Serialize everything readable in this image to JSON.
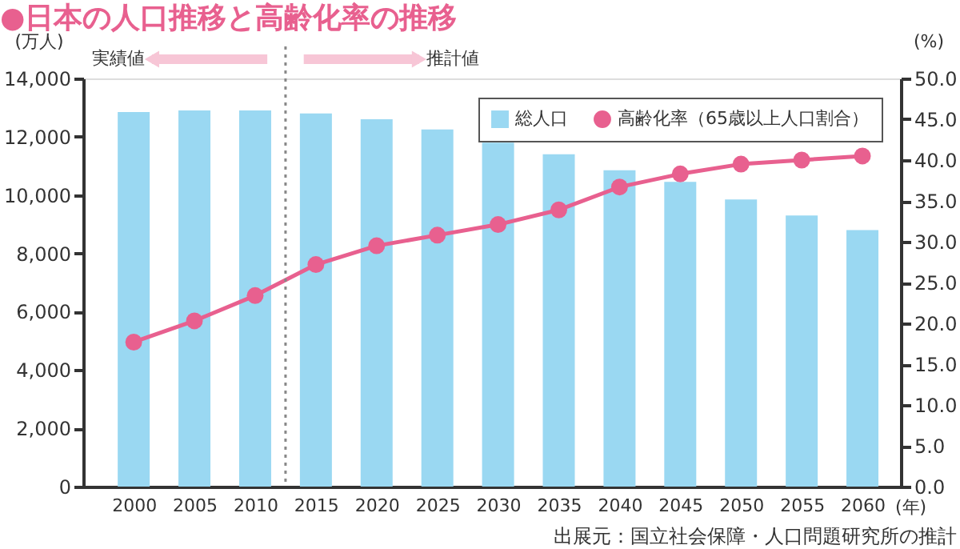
{
  "chart_data": {
    "type": "bar",
    "title": "●日本の人口推移と高齢化率の推移",
    "x": [
      2000,
      2005,
      2010,
      2015,
      2020,
      2025,
      2030,
      2035,
      2040,
      2045,
      2050,
      2055,
      2060
    ],
    "xlim": [
      1996.5,
      2062.5
    ],
    "xticks": [
      2000,
      2005,
      2010,
      2015,
      2020,
      2025,
      2030,
      2035,
      2040,
      2045,
      2050,
      2055,
      2060
    ],
    "xlabel": "(年)",
    "ylabel": "(万人)",
    "y2label": "(%)",
    "ylim": [
      0,
      14000
    ],
    "yticks": [
      0,
      {
        "value": 2000,
        "label": "2,000"
      },
      {
        "value": 4000,
        "label": "4,000"
      },
      {
        "value": 6000,
        "label": "6,000"
      },
      {
        "value": 8000,
        "label": "8,000"
      },
      {
        "value": 10000,
        "label": "10,000"
      },
      {
        "value": 12000,
        "label": "12,000"
      },
      {
        "value": 14000,
        "label": "14,000"
      }
    ],
    "y2lim": [
      0,
      50
    ],
    "y2ticks": [
      {
        "value": 0,
        "label": "0.0"
      },
      {
        "value": 5,
        "label": "5.0"
      },
      {
        "value": 10,
        "label": "10.0"
      },
      {
        "value": 15,
        "label": "15.0"
      },
      {
        "value": 20,
        "label": "20.0"
      },
      {
        "value": 25,
        "label": "25.0"
      },
      {
        "value": 30,
        "label": "30.0"
      },
      {
        "value": 35,
        "label": "35.0"
      },
      {
        "value": 40,
        "label": "40.0"
      },
      {
        "value": 45,
        "label": "45.0"
      },
      {
        "value": 50,
        "label": "50.0"
      }
    ],
    "series": [
      {
        "name": "総人口",
        "color": "#9ad8f2",
        "values": [
          12850,
          12900,
          12900,
          12800,
          12600,
          12250,
          11800,
          11400,
          10850,
          10450,
          9850,
          9300,
          8800
        ]
      },
      {
        "name": "高齢化率（65歳以上人口割合）",
        "type": "line",
        "axis": "y2",
        "color": "#e8608f",
        "values": [
          17.7,
          20.3,
          23.4,
          27.2,
          29.5,
          30.8,
          32.1,
          33.9,
          36.7,
          38.3,
          39.5,
          40.0,
          40.5
        ]
      }
    ],
    "ref_lines": [
      {
        "axis": "x",
        "value": 2012.5,
        "color": "#888888",
        "line_style": "dotted"
      }
    ],
    "annotations": [
      "実績値",
      "推計値",
      "出展元：国立社会保障・人口問題研究所の推計"
    ],
    "marker": "circle",
    "line_style": "solid",
    "grid": false,
    "legend": "top right"
  }
}
